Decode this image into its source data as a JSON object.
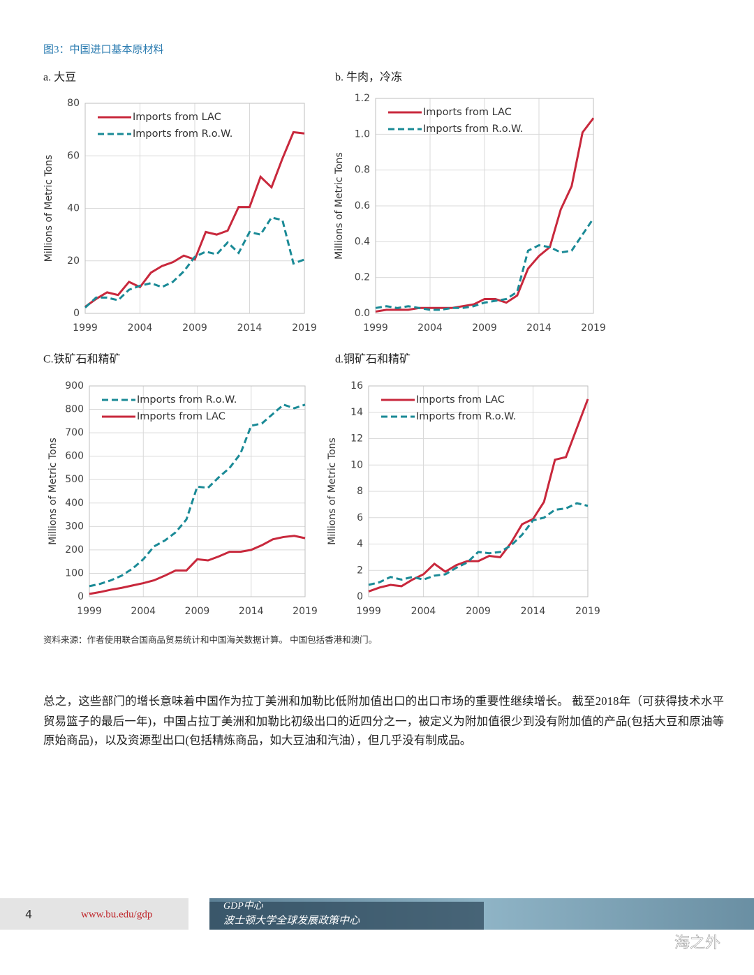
{
  "figure_title": "图3：中国进口基本原材料",
  "chart_data": [
    {
      "type": "line",
      "title": "a.  大豆",
      "ylabel": "Millions of Metric Tons",
      "legend": "upper left",
      "grid": true,
      "x": [
        1999,
        2000,
        2001,
        2002,
        2003,
        2004,
        2005,
        2006,
        2007,
        2008,
        2009,
        2010,
        2011,
        2012,
        2013,
        2014,
        2015,
        2016,
        2017,
        2018,
        2019
      ],
      "xlim": [
        1999,
        2019
      ],
      "xticks": [
        1999,
        2004,
        2009,
        2014,
        2019
      ],
      "ylim": [
        0,
        80
      ],
      "yticks": [
        0,
        20,
        40,
        60,
        80
      ],
      "series": [
        {
          "name": "Imports from LAC",
          "color": "#c8283c",
          "line_style": "solid",
          "values": [
            2.5,
            5.5,
            8,
            7,
            12,
            10,
            15.5,
            18,
            19.5,
            22,
            20.5,
            31,
            30,
            31.5,
            40.5,
            40.5,
            52,
            48,
            59,
            69,
            68.5
          ]
        },
        {
          "name": "Imports from R.o.W.",
          "color": "#1a8a96",
          "line_style": "dashed",
          "values": [
            2.2,
            6,
            6,
            5,
            9,
            10.5,
            11.5,
            10,
            12,
            16,
            21.5,
            23.5,
            22.5,
            27,
            23,
            31,
            30,
            36.5,
            35.5,
            19,
            20.5
          ]
        }
      ]
    },
    {
      "type": "line",
      "title": "b.  牛肉，冷冻",
      "ylabel": "Millions of Metric Tons",
      "legend": "upper left",
      "grid": true,
      "x": [
        1999,
        2000,
        2001,
        2002,
        2003,
        2004,
        2005,
        2006,
        2007,
        2008,
        2009,
        2010,
        2011,
        2012,
        2013,
        2014,
        2015,
        2016,
        2017,
        2018,
        2019
      ],
      "xlim": [
        1999,
        2019
      ],
      "xticks": [
        1999,
        2004,
        2009,
        2014,
        2019
      ],
      "ylim": [
        0,
        1.2
      ],
      "yticks": [
        {
          "value": 0,
          "label": "0.0"
        },
        0.2,
        0.4,
        0.6,
        0.8,
        {
          "value": 1,
          "label": "1.0"
        },
        1.2
      ],
      "series": [
        {
          "name": "Imports from LAC",
          "color": "#c8283c",
          "line_style": "solid",
          "values": [
            0.01,
            0.02,
            0.02,
            0.02,
            0.03,
            0.03,
            0.03,
            0.03,
            0.04,
            0.05,
            0.08,
            0.08,
            0.06,
            0.1,
            0.25,
            0.32,
            0.37,
            0.58,
            0.71,
            1.01,
            1.09
          ]
        },
        {
          "name": "Imports from R.o.W.",
          "color": "#1a8a96",
          "line_style": "dashed",
          "values": [
            0.03,
            0.04,
            0.03,
            0.04,
            0.03,
            0.02,
            0.02,
            0.03,
            0.03,
            0.04,
            0.06,
            0.07,
            0.08,
            0.12,
            0.35,
            0.38,
            0.37,
            0.34,
            0.35,
            0.44,
            0.53
          ]
        }
      ]
    },
    {
      "type": "line",
      "title": "C.铁矿石和精矿",
      "ylabel": "Millions of Metric Tons",
      "legend": "upper left",
      "grid": true,
      "x": [
        1999,
        2000,
        2001,
        2002,
        2003,
        2004,
        2005,
        2006,
        2007,
        2008,
        2009,
        2010,
        2011,
        2012,
        2013,
        2014,
        2015,
        2016,
        2017,
        2018,
        2019
      ],
      "xlim": [
        1999,
        2019
      ],
      "xticks": [
        1999,
        2004,
        2009,
        2014,
        2019
      ],
      "ylim": [
        0,
        900
      ],
      "yticks": [
        0,
        100,
        200,
        300,
        400,
        500,
        600,
        700,
        800,
        900
      ],
      "series": [
        {
          "name": "Imports from R.o.W.",
          "color": "#1a8a96",
          "line_style": "dashed",
          "values": [
            45,
            55,
            70,
            90,
            120,
            160,
            215,
            240,
            275,
            330,
            470,
            465,
            510,
            550,
            610,
            730,
            740,
            780,
            820,
            805,
            820
          ]
        },
        {
          "name": "Imports from LAC",
          "color": "#c8283c",
          "line_style": "solid",
          "values": [
            12,
            20,
            30,
            38,
            48,
            58,
            70,
            90,
            112,
            112,
            160,
            155,
            172,
            192,
            192,
            200,
            220,
            245,
            255,
            260,
            250
          ]
        }
      ]
    },
    {
      "type": "line",
      "title": "d.铜矿石和精矿",
      "ylabel": "Millions of Metric Tons",
      "legend": "upper left",
      "grid": true,
      "x": [
        1999,
        2000,
        2001,
        2002,
        2003,
        2004,
        2005,
        2006,
        2007,
        2008,
        2009,
        2010,
        2011,
        2012,
        2013,
        2014,
        2015,
        2016,
        2017,
        2018,
        2019
      ],
      "xlim": [
        1999,
        2019
      ],
      "xticks": [
        1999,
        2004,
        2009,
        2014,
        2019
      ],
      "ylim": [
        0,
        16
      ],
      "yticks": [
        0,
        2,
        4,
        6,
        8,
        10,
        12,
        14,
        16
      ],
      "series": [
        {
          "name": "Imports from LAC",
          "color": "#c8283c",
          "line_style": "solid",
          "values": [
            0.4,
            0.7,
            0.9,
            0.8,
            1.3,
            1.7,
            2.5,
            1.9,
            2.4,
            2.7,
            2.7,
            3.1,
            3,
            4.1,
            5.5,
            5.9,
            7.2,
            10.4,
            10.6,
            12.8,
            15
          ]
        },
        {
          "name": "Imports from R.o.W.",
          "color": "#1a8a96",
          "line_style": "dashed",
          "values": [
            0.9,
            1.1,
            1.5,
            1.3,
            1.5,
            1.3,
            1.6,
            1.7,
            2.2,
            2.6,
            3.4,
            3.3,
            3.4,
            3.9,
            4.7,
            5.8,
            6,
            6.6,
            6.7,
            7.1,
            6.9
          ]
        }
      ]
    }
  ],
  "source": "资料来源：作者使用联合国商品贸易统计和中国海关数据计算。 中国包括香港和澳门。",
  "paragraph": [
    "总之，这些部门的增长意味着中国作为拉丁美洲和加勒比低附加值出口的出口市场的重要性继续增长。 截至2018年（可获得技术水平",
    "贸易篮子的最后一年)，中国占拉丁美洲和加勒比初级出口的近四分之一，被定义为附加值很少到没有附加值的产品(包括大豆和原油等",
    "原始商品)，以及资源型出口(包括精炼商品，如大豆油和汽油），但几乎没有制成品。"
  ],
  "footer": {
    "page": "4",
    "url": "www.bu.edu/gdp",
    "banner_title": "GDP中心",
    "banner_subtitle": "波士顿大学全球发展政策中心",
    "watermark": "海之外"
  }
}
